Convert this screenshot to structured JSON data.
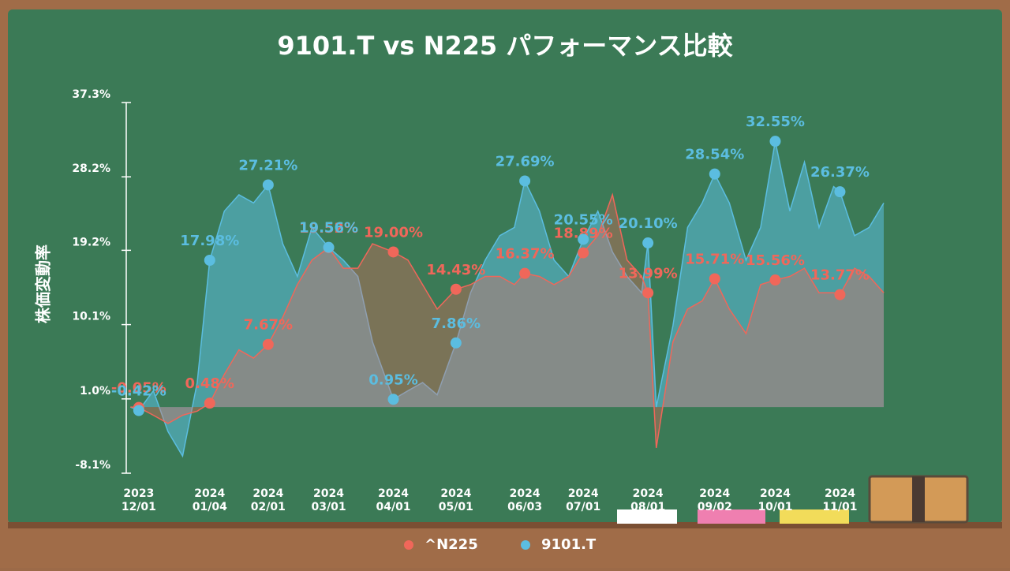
{
  "chart_data": {
    "type": "area",
    "title": "9101.T vs N225 パフォーマンス比較",
    "y_label": "株価変動率",
    "x": [
      "2023-11-27",
      "2023-12-01",
      "2023-12-08",
      "2023-12-15",
      "2023-12-22",
      "2023-12-29",
      "2024-01-04",
      "2024-01-11",
      "2024-01-18",
      "2024-01-25",
      "2024-02-01",
      "2024-02-08",
      "2024-02-15",
      "2024-02-22",
      "2024-03-01",
      "2024-03-08",
      "2024-03-15",
      "2024-03-22",
      "2024-04-01",
      "2024-04-08",
      "2024-04-15",
      "2024-04-22",
      "2024-05-01",
      "2024-05-08",
      "2024-05-15",
      "2024-05-22",
      "2024-05-29",
      "2024-06-03",
      "2024-06-10",
      "2024-06-17",
      "2024-06-24",
      "2024-07-01",
      "2024-07-08",
      "2024-07-15",
      "2024-07-22",
      "2024-07-29",
      "2024-08-01",
      "2024-08-05",
      "2024-08-13",
      "2024-08-20",
      "2024-08-27",
      "2024-09-02",
      "2024-09-09",
      "2024-09-17",
      "2024-09-24",
      "2024-10-01",
      "2024-10-08",
      "2024-10-15",
      "2024-10-22",
      "2024-10-29",
      "2024-11-01",
      "2024-11-08",
      "2024-11-15",
      "2024-11-22"
    ],
    "series": [
      {
        "name": "^N225",
        "color": "#f0675a",
        "values": [
          0,
          -0.05,
          -1,
          -2,
          -1,
          -0.5,
          0.48,
          4,
          7,
          6,
          7.67,
          11,
          15,
          18,
          19.52,
          17,
          17,
          20,
          19.0,
          18,
          15,
          12,
          14.43,
          15,
          16,
          16,
          15,
          16.37,
          16,
          15,
          16,
          18.89,
          21,
          26,
          18,
          16,
          13.99,
          -5,
          8,
          12,
          13,
          15.71,
          12,
          9,
          15,
          15.56,
          16,
          17,
          14,
          14,
          13.77,
          17,
          16,
          14
        ],
        "value_labels": [
          null,
          "-0.05%",
          null,
          null,
          null,
          null,
          "0.48%",
          null,
          null,
          null,
          "7.67%",
          null,
          null,
          null,
          "19.52%",
          null,
          null,
          null,
          "19.00%",
          null,
          null,
          null,
          "14.43%",
          null,
          null,
          null,
          null,
          "16.37%",
          null,
          null,
          null,
          "18.89%",
          null,
          null,
          null,
          null,
          "13.99%",
          null,
          null,
          null,
          null,
          "15.71%",
          null,
          null,
          null,
          "15.56%",
          null,
          null,
          null,
          null,
          "13.77%",
          null,
          null,
          null
        ]
      },
      {
        "name": "9101.T",
        "color": "#5bbde0",
        "values": [
          0,
          -0.42,
          2,
          -3,
          -6,
          3,
          17.98,
          24,
          26,
          25,
          27.21,
          20,
          16,
          22,
          19.56,
          18,
          16,
          8,
          0.95,
          2,
          3,
          1.5,
          7.86,
          14,
          18,
          21,
          22,
          27.69,
          24,
          18,
          16,
          20.55,
          24,
          19,
          16,
          14,
          20.1,
          0,
          10,
          22,
          25,
          28.54,
          25,
          18,
          22,
          32.55,
          24,
          30,
          22,
          27,
          26.37,
          21,
          22,
          25
        ],
        "value_labels": [
          null,
          "-0.42%",
          null,
          null,
          null,
          null,
          "17.98%",
          null,
          null,
          null,
          "27.21%",
          null,
          null,
          null,
          "19.56%",
          null,
          null,
          null,
          "0.95%",
          null,
          null,
          null,
          "7.86%",
          null,
          null,
          null,
          null,
          "27.69%",
          null,
          null,
          null,
          "20.55%",
          null,
          null,
          null,
          null,
          "20.10%",
          null,
          null,
          null,
          null,
          "28.54%",
          null,
          null,
          null,
          "32.55%",
          null,
          null,
          null,
          null,
          "26.37%",
          null,
          null,
          null
        ]
      }
    ],
    "xlim": [
      "2023-11-25",
      "2024-11-22"
    ],
    "xticks": [
      {
        "value": "2023-12-01",
        "label": "2023 12/01"
      },
      {
        "value": "2024-01-04",
        "label": "2024 01/04"
      },
      {
        "value": "2024-02-01",
        "label": "2024 02/01"
      },
      {
        "value": "2024-03-01",
        "label": "2024 03/01"
      },
      {
        "value": "2024-04-01",
        "label": "2024 04/01"
      },
      {
        "value": "2024-05-01",
        "label": "2024 05/01"
      },
      {
        "value": "2024-06-03",
        "label": "2024 06/03"
      },
      {
        "value": "2024-07-01",
        "label": "2024 07/01"
      },
      {
        "value": "2024-08-01",
        "label": "2024 08/01"
      },
      {
        "value": "2024-09-02",
        "label": "2024 09/02"
      },
      {
        "value": "2024-10-01",
        "label": "2024 10/01"
      },
      {
        "value": "2024-11-01",
        "label": "2024 11/01"
      }
    ],
    "ylim": [
      -8.1,
      37.3
    ],
    "yticks": [
      {
        "value": -8.1,
        "label": "-8.1%"
      },
      {
        "value": 1.0,
        "label": "1.0%"
      },
      {
        "value": 10.1,
        "label": "10.1%"
      },
      {
        "value": 19.2,
        "label": "19.2%"
      },
      {
        "value": 28.2,
        "label": "28.2%"
      },
      {
        "value": 37.3,
        "label": "37.3%"
      }
    ]
  }
}
